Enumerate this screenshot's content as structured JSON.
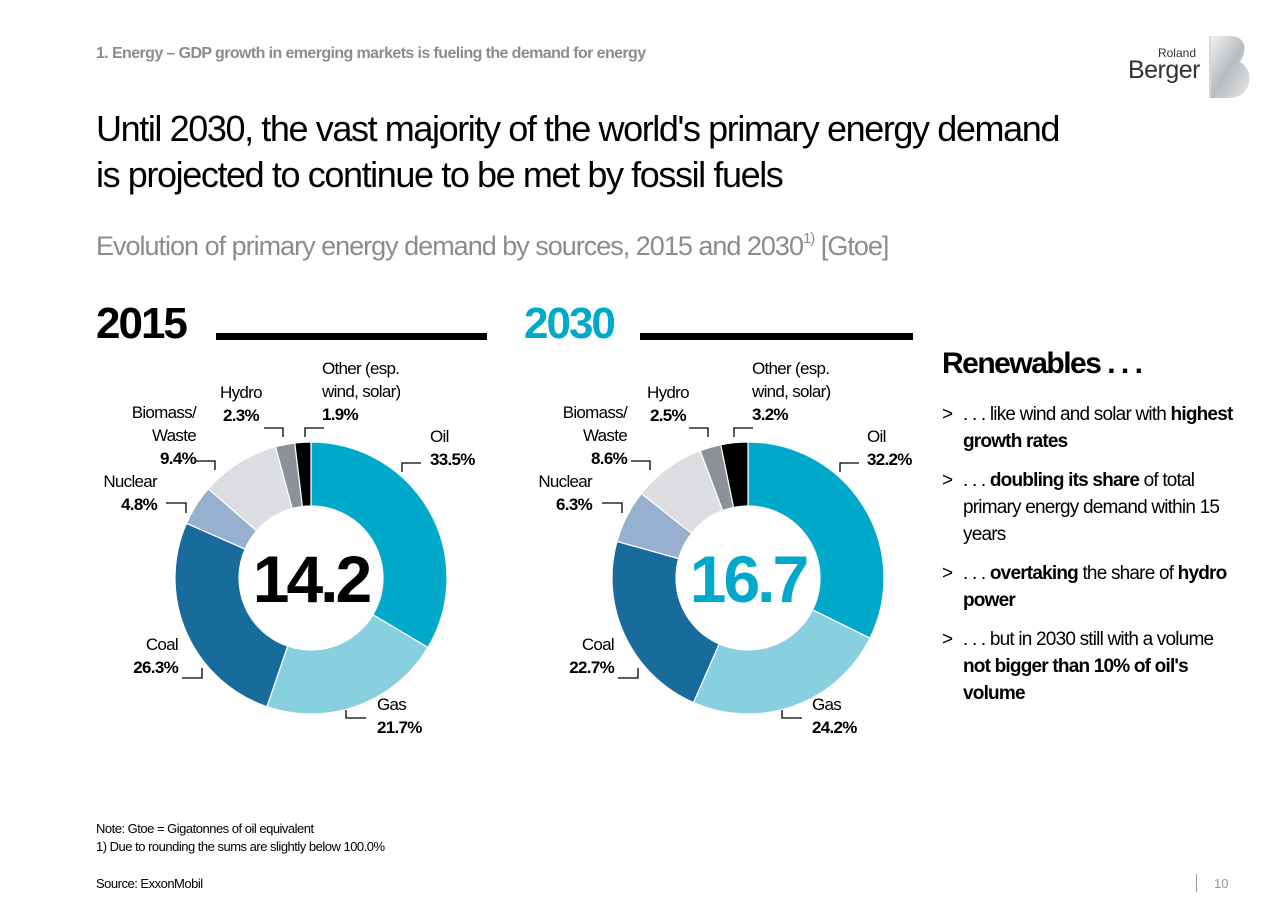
{
  "header": {
    "breadcrumb": "1. Energy – GDP growth in emerging markets is fueling the demand for energy",
    "logo_top": "Roland",
    "logo_bottom": "Berger"
  },
  "title_line1": "Until 2030, the vast majority of the world's primary energy demand",
  "title_line2": "is projected to continue to be met by fossil fuels",
  "subtitle": "Evolution of primary energy demand by sources, 2015 and 2030",
  "subtitle_sup": "1)",
  "subtitle_unit": " [Gtoe]",
  "colors": {
    "oil": "#00a9c9",
    "gas": "#88cfe0",
    "coal": "#176c9c",
    "nuclear": "#98b0cf",
    "biomass": "#dcdee2",
    "hydro": "#8c9097",
    "other": "#000000",
    "accent_2030": "#00a9c9"
  },
  "chart_data": [
    {
      "type": "pie",
      "year": "2015",
      "total": "14.2",
      "categories": [
        "Oil",
        "Gas",
        "Coal",
        "Nuclear",
        "Biomass/ Waste",
        "Hydro",
        "Other (esp. wind, solar)"
      ],
      "values": [
        33.5,
        21.7,
        26.3,
        4.8,
        9.4,
        2.3,
        1.9
      ],
      "value_labels": [
        "33.5%",
        "21.7%",
        "26.3%",
        "4.8%",
        "9.4%",
        "2.3%",
        "1.9%"
      ]
    },
    {
      "type": "pie",
      "year": "2030",
      "total": "16.7",
      "categories": [
        "Oil",
        "Gas",
        "Coal",
        "Nuclear",
        "Biomass/ Waste",
        "Hydro",
        "Other (esp. wind, solar)"
      ],
      "values": [
        32.2,
        24.2,
        22.7,
        6.3,
        8.6,
        2.5,
        3.2
      ],
      "value_labels": [
        "32.2%",
        "24.2%",
        "22.7%",
        "6.3%",
        "8.6%",
        "2.5%",
        "3.2%"
      ]
    }
  ],
  "labels": {
    "oil": "Oil",
    "gas": "Gas",
    "coal": "Coal",
    "nuclear": "Nuclear",
    "biomass_1": "Biomass/",
    "biomass_2": "Waste",
    "hydro": "Hydro",
    "other_1": "Other (esp.",
    "other_2": "wind, solar)"
  },
  "renewables": {
    "heading": "Renewables . . .",
    "bullet_marker": ">",
    "b1_pre": ". . . like wind and solar with ",
    "b1_bold": "highest growth rates",
    "b2_pre": ". . . ",
    "b2_bold": "doubling its share",
    "b2_post": " of total primary energy demand within 15 years",
    "b3_pre": ". . . ",
    "b3_bold1": "overtaking",
    "b3_mid": " the share of ",
    "b3_bold2": "hydro power",
    "b4_pre": ". . . but in 2030 still with a volume ",
    "b4_bold": "not bigger than 10% of oil's volume"
  },
  "footer": {
    "note": "Note: Gtoe = Gigatonnes of oil equivalent",
    "footnote": "1) Due to rounding the sums are slightly below 100.0%",
    "source": "Source: ExxonMobil",
    "page": "10"
  }
}
